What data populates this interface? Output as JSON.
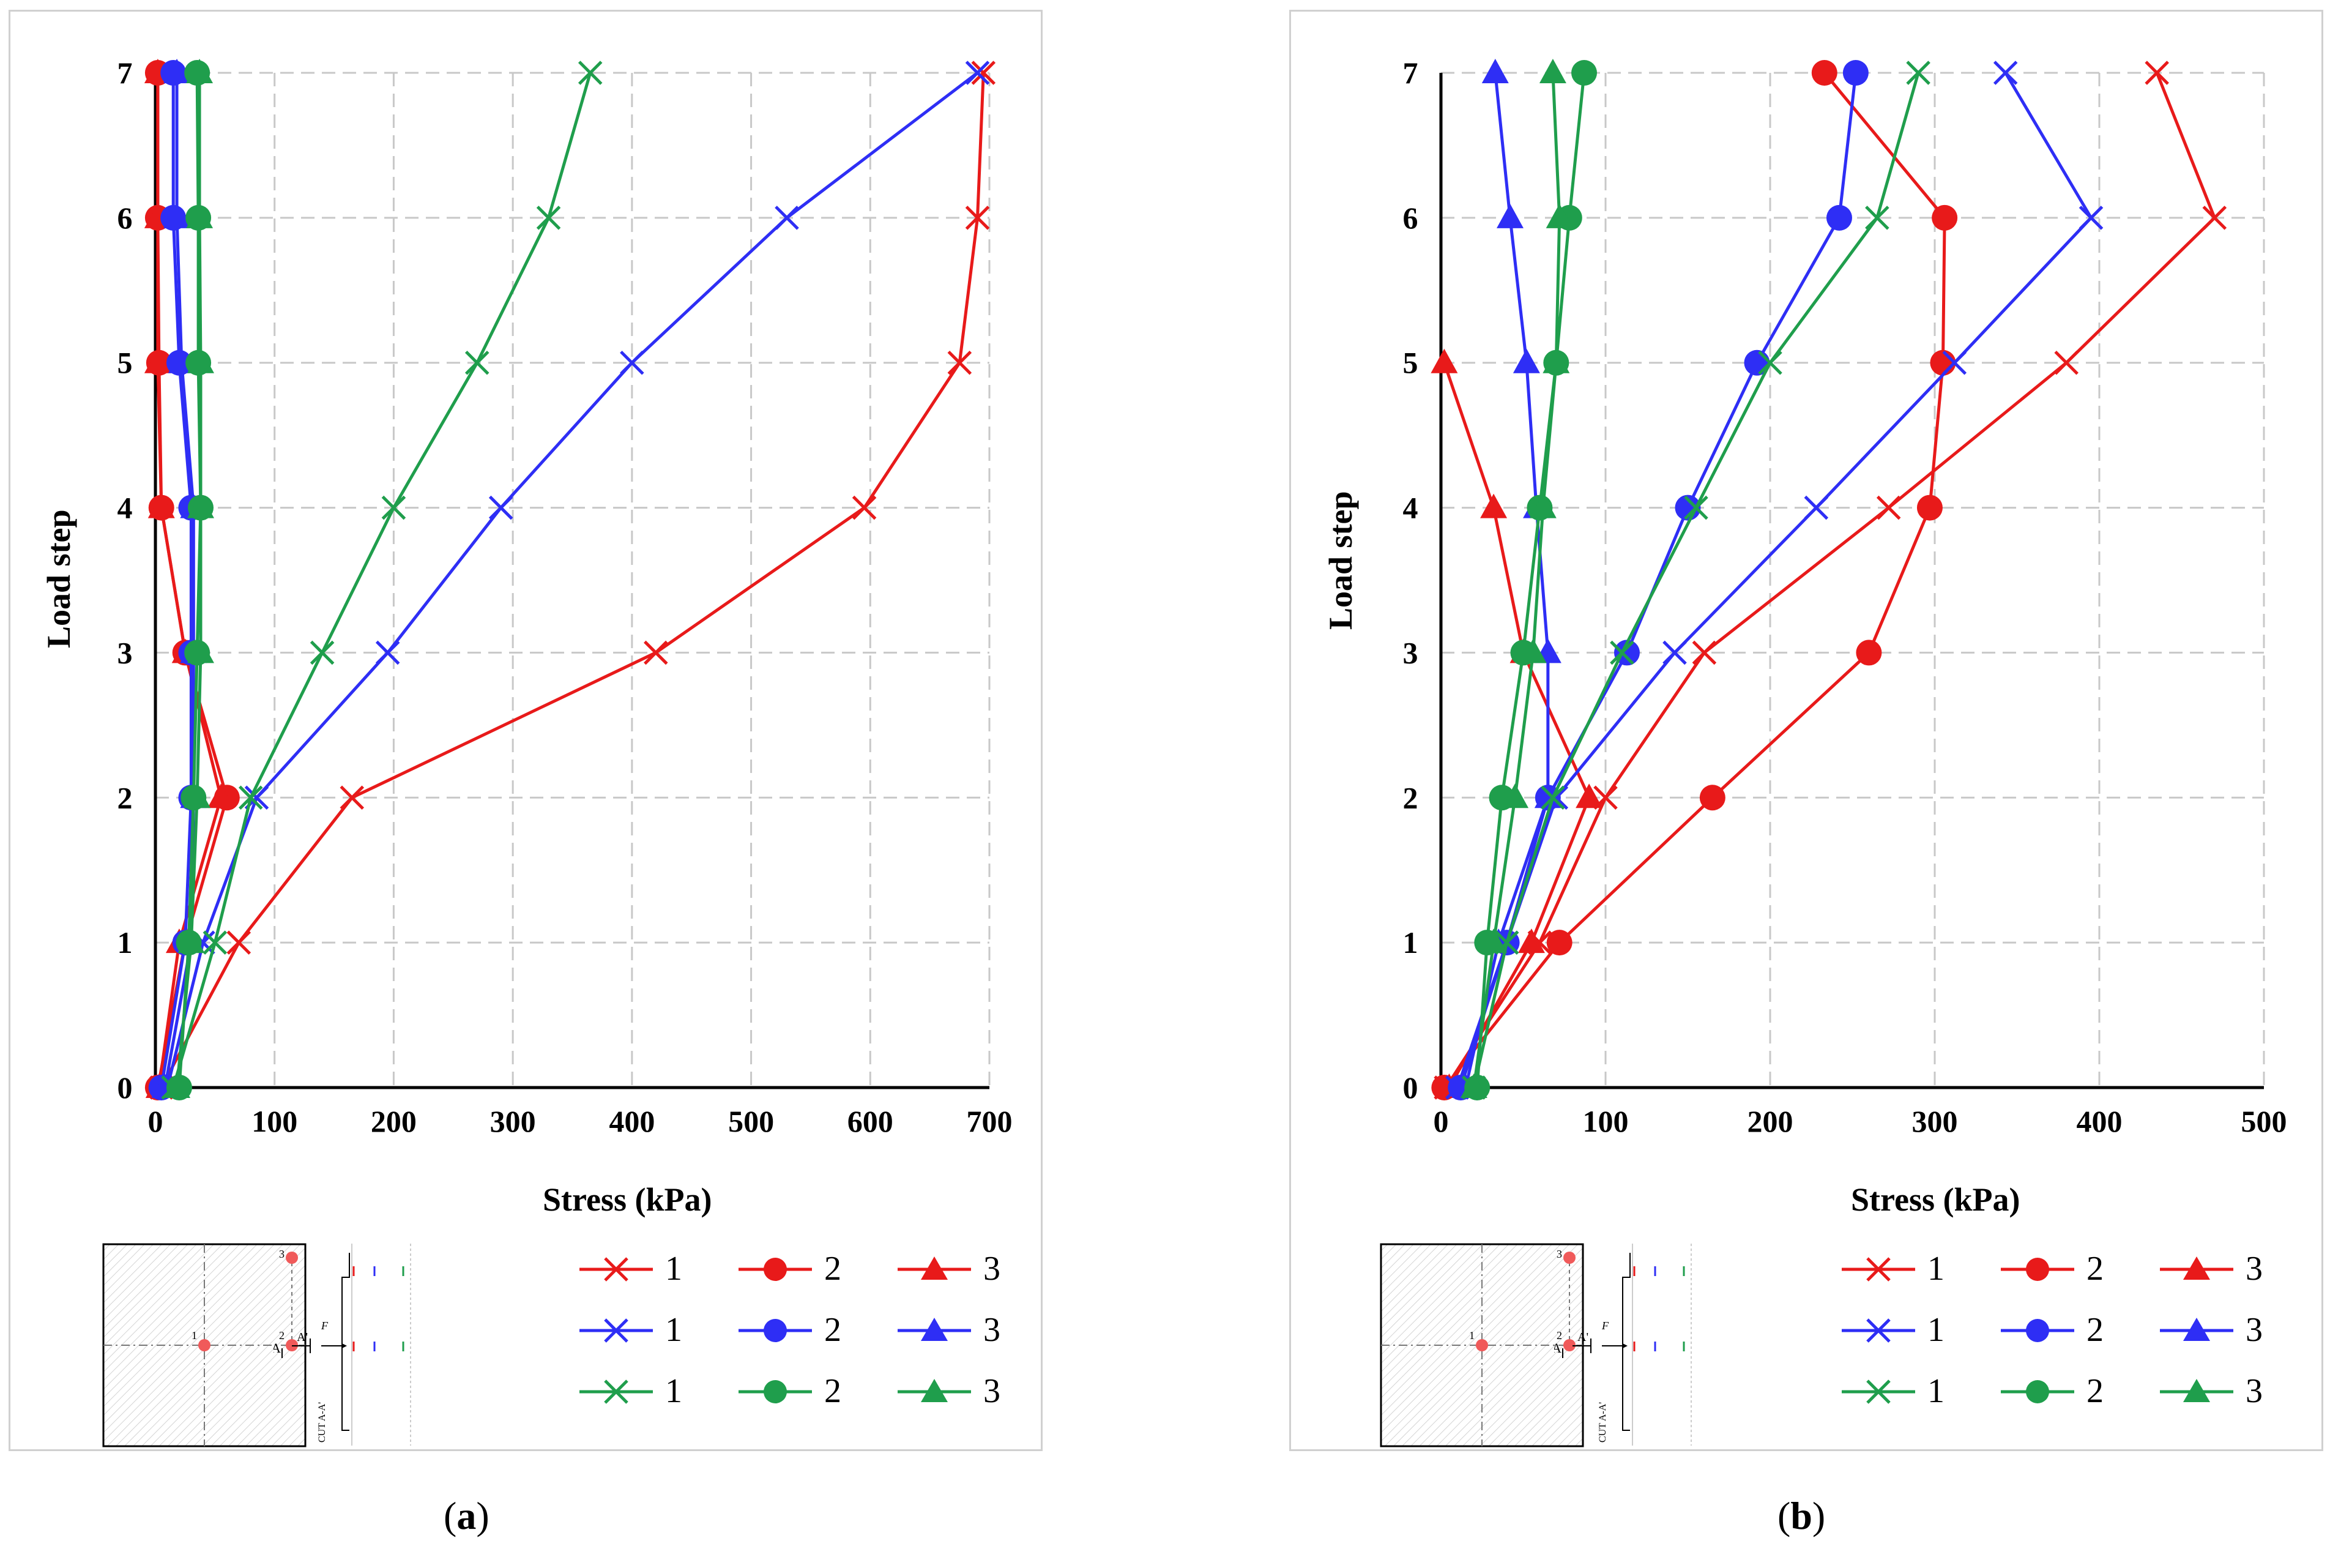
{
  "figure": {
    "caption_a": "a",
    "caption_b": "b",
    "colors": {
      "red": "#e81a1a",
      "blue": "#2e2ef5",
      "green": "#1f9e4c"
    }
  },
  "chart_data": [
    {
      "panel": "a",
      "type": "line",
      "title": "",
      "xlabel": "Stress (kPa)",
      "ylabel": "Load  step",
      "xlim": [
        0,
        700
      ],
      "ylim": [
        0,
        7
      ],
      "xticks": [
        0,
        100,
        200,
        300,
        400,
        500,
        600,
        700
      ],
      "yticks": [
        0,
        1,
        2,
        3,
        4,
        5,
        6,
        7
      ],
      "grid": true,
      "y": [
        0,
        1,
        2,
        3,
        4,
        5,
        6,
        7
      ],
      "series": [
        {
          "name": "1",
          "color": "red",
          "marker": "x",
          "x": [
            5,
            70,
            165,
            420,
            595,
            675,
            690,
            695
          ]
        },
        {
          "name": "2",
          "color": "red",
          "marker": "circle",
          "x": [
            2,
            25,
            60,
            25,
            5,
            3,
            2,
            2
          ]
        },
        {
          "name": "3",
          "color": "red",
          "marker": "triangle",
          "x": [
            3,
            20,
            55,
            25,
            5,
            2,
            2,
            2
          ]
        },
        {
          "name": "1",
          "color": "blue",
          "marker": "x",
          "x": [
            10,
            40,
            85,
            195,
            290,
            400,
            530,
            690
          ]
        },
        {
          "name": "2",
          "color": "blue",
          "marker": "circle",
          "x": [
            5,
            25,
            30,
            30,
            30,
            20,
            15,
            15
          ]
        },
        {
          "name": "3",
          "color": "blue",
          "marker": "triangle",
          "x": [
            8,
            30,
            32,
            32,
            32,
            22,
            18,
            18
          ]
        },
        {
          "name": "1",
          "color": "green",
          "marker": "x",
          "x": [
            15,
            50,
            80,
            140,
            200,
            270,
            330,
            365
          ]
        },
        {
          "name": "2",
          "color": "green",
          "marker": "circle",
          "x": [
            20,
            28,
            32,
            35,
            38,
            36,
            36,
            35
          ]
        },
        {
          "name": "3",
          "color": "green",
          "marker": "triangle",
          "x": [
            18,
            30,
            35,
            38,
            38,
            38,
            37,
            37
          ]
        }
      ]
    },
    {
      "panel": "b",
      "type": "line",
      "title": "",
      "xlabel": "Stress (kPa)",
      "ylabel": "Load step",
      "xlim": [
        0,
        500
      ],
      "ylim": [
        0,
        7
      ],
      "xticks": [
        0,
        100,
        200,
        300,
        400,
        500
      ],
      "yticks": [
        0,
        1,
        2,
        3,
        4,
        5,
        6,
        7
      ],
      "grid": true,
      "y": [
        0,
        1,
        2,
        3,
        4,
        5,
        6,
        7
      ],
      "series": [
        {
          "name": "1",
          "color": "red",
          "marker": "x",
          "x": [
            3,
            60,
            100,
            160,
            272,
            380,
            470,
            435
          ]
        },
        {
          "name": "2",
          "color": "red",
          "marker": "circle",
          "x": [
            2,
            72,
            165,
            260,
            297,
            305,
            306,
            233
          ]
        },
        {
          "name": "3",
          "color": "red",
          "marker": "triangle",
          "x": [
            5,
            55,
            90,
            50,
            32,
            2,
            null,
            null
          ]
        },
        {
          "name": "1",
          "color": "blue",
          "marker": "x",
          "x": [
            10,
            40,
            70,
            142,
            228,
            312,
            395,
            343
          ]
        },
        {
          "name": "2",
          "color": "blue",
          "marker": "circle",
          "x": [
            12,
            40,
            65,
            113,
            150,
            192,
            242,
            252
          ]
        },
        {
          "name": "3",
          "color": "blue",
          "marker": "triangle",
          "x": [
            15,
            35,
            65,
            65,
            58,
            52,
            42,
            33
          ]
        },
        {
          "name": "1",
          "color": "green",
          "marker": "x",
          "x": [
            20,
            40,
            68,
            110,
            155,
            200,
            265,
            290
          ]
        },
        {
          "name": "2",
          "color": "green",
          "marker": "circle",
          "x": [
            22,
            28,
            37,
            50,
            60,
            70,
            78,
            87
          ]
        },
        {
          "name": "3",
          "color": "green",
          "marker": "triangle",
          "x": [
            20,
            32,
            45,
            56,
            62,
            70,
            72,
            68
          ]
        }
      ]
    }
  ],
  "insets": {
    "square_points": [
      "1",
      "2",
      "3"
    ],
    "section_marker_left": "A",
    "section_marker_right": "A'",
    "cut_label": "CUT A-A'",
    "load_label": "F"
  },
  "legend_rows": [
    {
      "color": "red",
      "labels": [
        "1",
        "2",
        "3"
      ]
    },
    {
      "color": "blue",
      "labels": [
        "1",
        "2",
        "3"
      ]
    },
    {
      "color": "green",
      "labels": [
        "1",
        "2",
        "3"
      ]
    }
  ]
}
